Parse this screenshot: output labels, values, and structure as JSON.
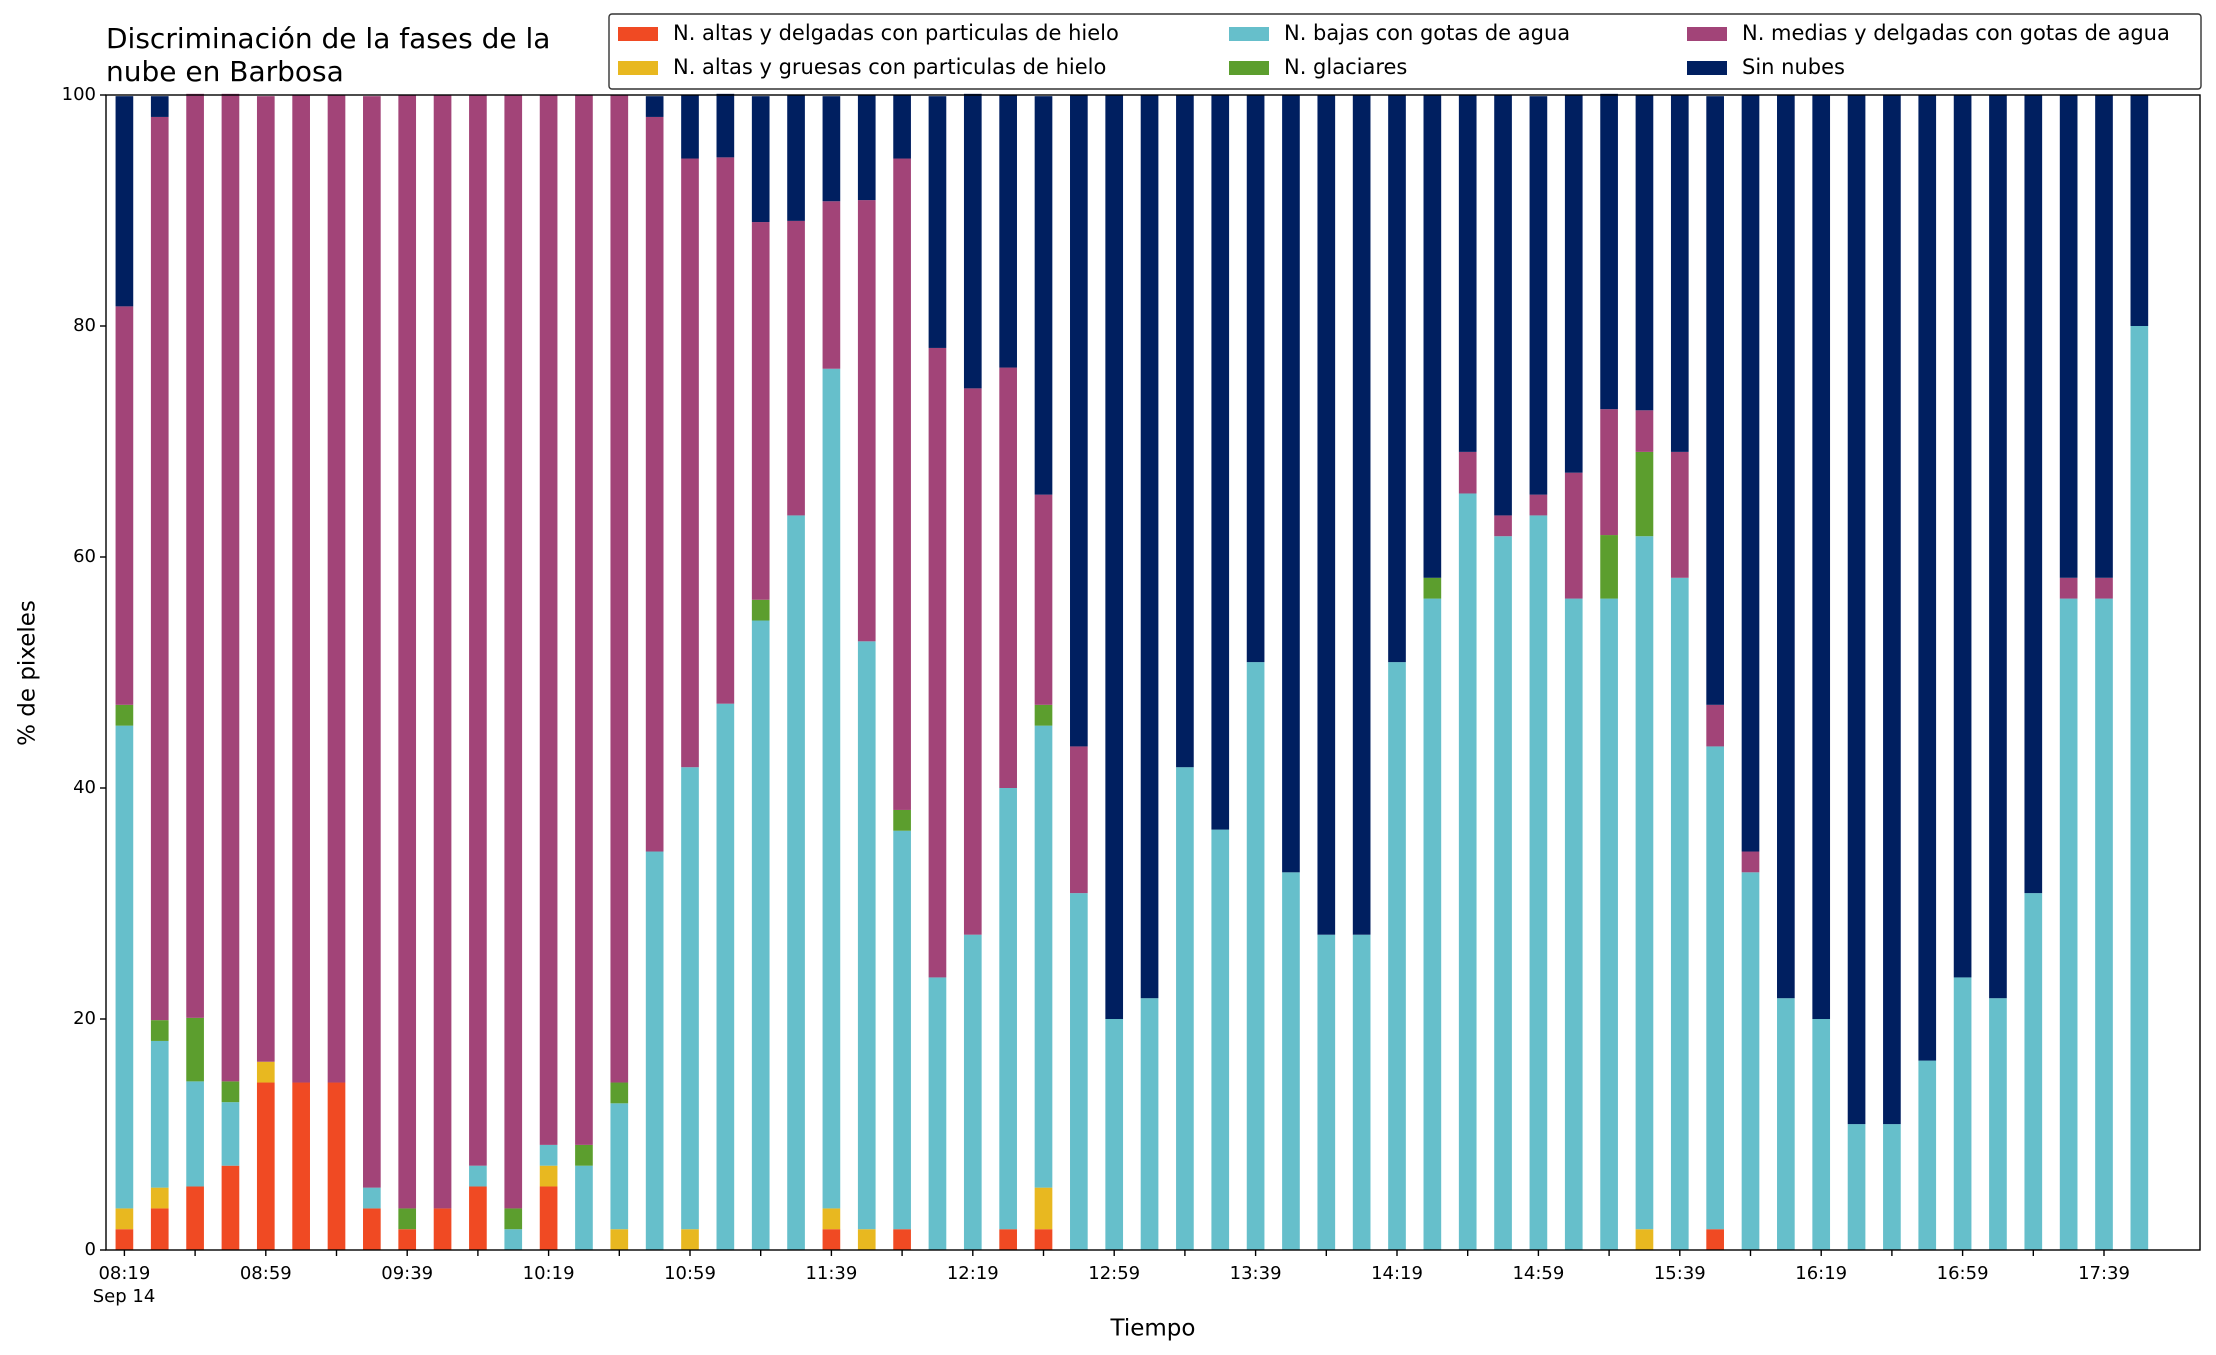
{
  "chart_data": {
    "type": "stacked_bar",
    "title": [
      "Discriminación de la fases de la",
      "nube en Barbosa"
    ],
    "x_label": "Tiempo",
    "y_label": "% de pixeles",
    "x_date_label": "Sep 14",
    "categories": [
      "08:19",
      null,
      null,
      null,
      "08:59",
      null,
      null,
      null,
      "09:39",
      null,
      null,
      null,
      "10:19",
      null,
      null,
      null,
      "10:59",
      null,
      null,
      null,
      "11:39",
      null,
      null,
      null,
      "12:19",
      null,
      null,
      null,
      "12:59",
      null,
      null,
      null,
      "13:39",
      null,
      null,
      null,
      "14:19",
      null,
      null,
      null,
      "14:59",
      null,
      null,
      null,
      "15:39",
      null,
      null,
      null,
      "16:19",
      null,
      null,
      null,
      "16:59",
      null,
      null,
      null,
      "17:39",
      null
    ],
    "ylim": [
      0,
      100
    ],
    "yticks": [
      0,
      20,
      40,
      60,
      80,
      100
    ],
    "legend": "top-right",
    "series": [
      {
        "name": "N. altas y delgadas con particulas de hielo",
        "color": "#f04a23",
        "values": [
          1.8,
          3.6,
          5.5,
          7.3,
          14.5,
          14.5,
          14.5,
          3.6,
          1.8,
          3.6,
          5.5,
          0,
          5.5,
          0,
          0,
          0,
          0,
          0,
          0,
          0,
          1.8,
          0,
          1.8,
          0,
          0,
          1.8,
          1.8,
          0,
          0,
          0,
          0,
          0,
          0,
          0,
          0,
          0,
          0,
          0,
          0,
          0,
          0,
          0,
          0,
          0,
          0,
          1.8,
          0,
          0,
          0,
          0,
          0,
          0,
          0,
          0,
          0,
          0,
          0,
          0
        ]
      },
      {
        "name": "N. altas y gruesas con particulas de hielo",
        "color": "#e8b820",
        "values": [
          1.8,
          1.8,
          0,
          0,
          1.8,
          0,
          0,
          0,
          0,
          0,
          0,
          0,
          1.8,
          0,
          1.8,
          0,
          1.8,
          0,
          0,
          0,
          1.8,
          1.8,
          0,
          0,
          0,
          0,
          3.6,
          0,
          0,
          0,
          0,
          0,
          0,
          0,
          0,
          0,
          0,
          0,
          0,
          0,
          0,
          0,
          0,
          1.8,
          0,
          0,
          0,
          0,
          0,
          0,
          0,
          0,
          0,
          0,
          0,
          0,
          0,
          0
        ]
      },
      {
        "name": "N. bajas con gotas de agua",
        "color": "#66bfcb",
        "values": [
          41.8,
          12.7,
          9.1,
          5.5,
          0,
          0,
          0,
          1.8,
          0,
          0,
          1.8,
          1.8,
          1.8,
          7.3,
          10.9,
          34.5,
          40,
          47.3,
          54.5,
          63.6,
          72.7,
          50.9,
          34.5,
          23.6,
          27.3,
          38.2,
          40,
          30.9,
          20,
          21.8,
          41.8,
          36.4,
          50.9,
          32.7,
          27.3,
          27.3,
          50.9,
          56.4,
          65.5,
          61.8,
          63.6,
          56.4,
          56.4,
          60,
          58.2,
          41.8,
          32.7,
          21.8,
          20,
          10.9,
          10.9,
          16.4,
          23.6,
          21.8,
          30.9,
          56.4,
          56.4,
          80
        ]
      },
      {
        "name": "N. glaciares",
        "color": "#5c9e2e",
        "values": [
          1.8,
          1.8,
          5.5,
          1.8,
          0,
          0,
          0,
          0,
          1.8,
          0,
          0,
          1.8,
          0,
          1.8,
          1.8,
          0,
          0,
          0,
          1.8,
          0,
          0,
          0,
          1.8,
          0,
          0,
          0,
          1.8,
          0,
          0,
          0,
          0,
          0,
          0,
          0,
          0,
          0,
          0,
          1.8,
          0,
          0,
          0,
          0,
          5.5,
          7.3,
          0,
          0,
          0,
          0,
          0,
          0,
          0,
          0,
          0,
          0,
          0,
          0,
          0,
          0
        ]
      },
      {
        "name": "N. medias y delgadas con gotas de agua",
        "color": "#a24478",
        "values": [
          34.5,
          78.2,
          80,
          85.5,
          83.6,
          85.5,
          85.5,
          94.5,
          96.4,
          96.4,
          92.7,
          96.4,
          90.9,
          90.9,
          85.5,
          63.6,
          52.7,
          47.3,
          32.7,
          25.5,
          14.5,
          38.2,
          56.4,
          54.5,
          47.3,
          36.4,
          18.2,
          12.7,
          0,
          0,
          0,
          0,
          0,
          0,
          0,
          0,
          0,
          0,
          3.6,
          1.8,
          1.8,
          10.9,
          10.9,
          3.6,
          10.9,
          3.6,
          1.8,
          0,
          0,
          0,
          0,
          0,
          0,
          0,
          0,
          1.8,
          1.8,
          0
        ]
      },
      {
        "name": "Sin nubes",
        "color": "#001f60",
        "values": [
          18.2,
          1.8,
          0,
          0,
          0,
          0,
          0,
          0,
          0,
          0,
          0,
          0,
          0,
          0,
          0,
          1.8,
          5.5,
          5.5,
          10.9,
          10.9,
          9.1,
          9.1,
          5.5,
          21.8,
          25.5,
          23.6,
          34.5,
          56.4,
          80,
          78.2,
          58.2,
          63.6,
          49.1,
          67.3,
          72.7,
          72.7,
          49.1,
          41.8,
          30.9,
          36.4,
          34.5,
          32.7,
          27.3,
          27.3,
          30.9,
          52.7,
          65.5,
          78.2,
          80,
          89.1,
          89.1,
          83.6,
          76.4,
          78.2,
          69.1,
          41.8,
          41.8,
          20
        ]
      }
    ]
  }
}
